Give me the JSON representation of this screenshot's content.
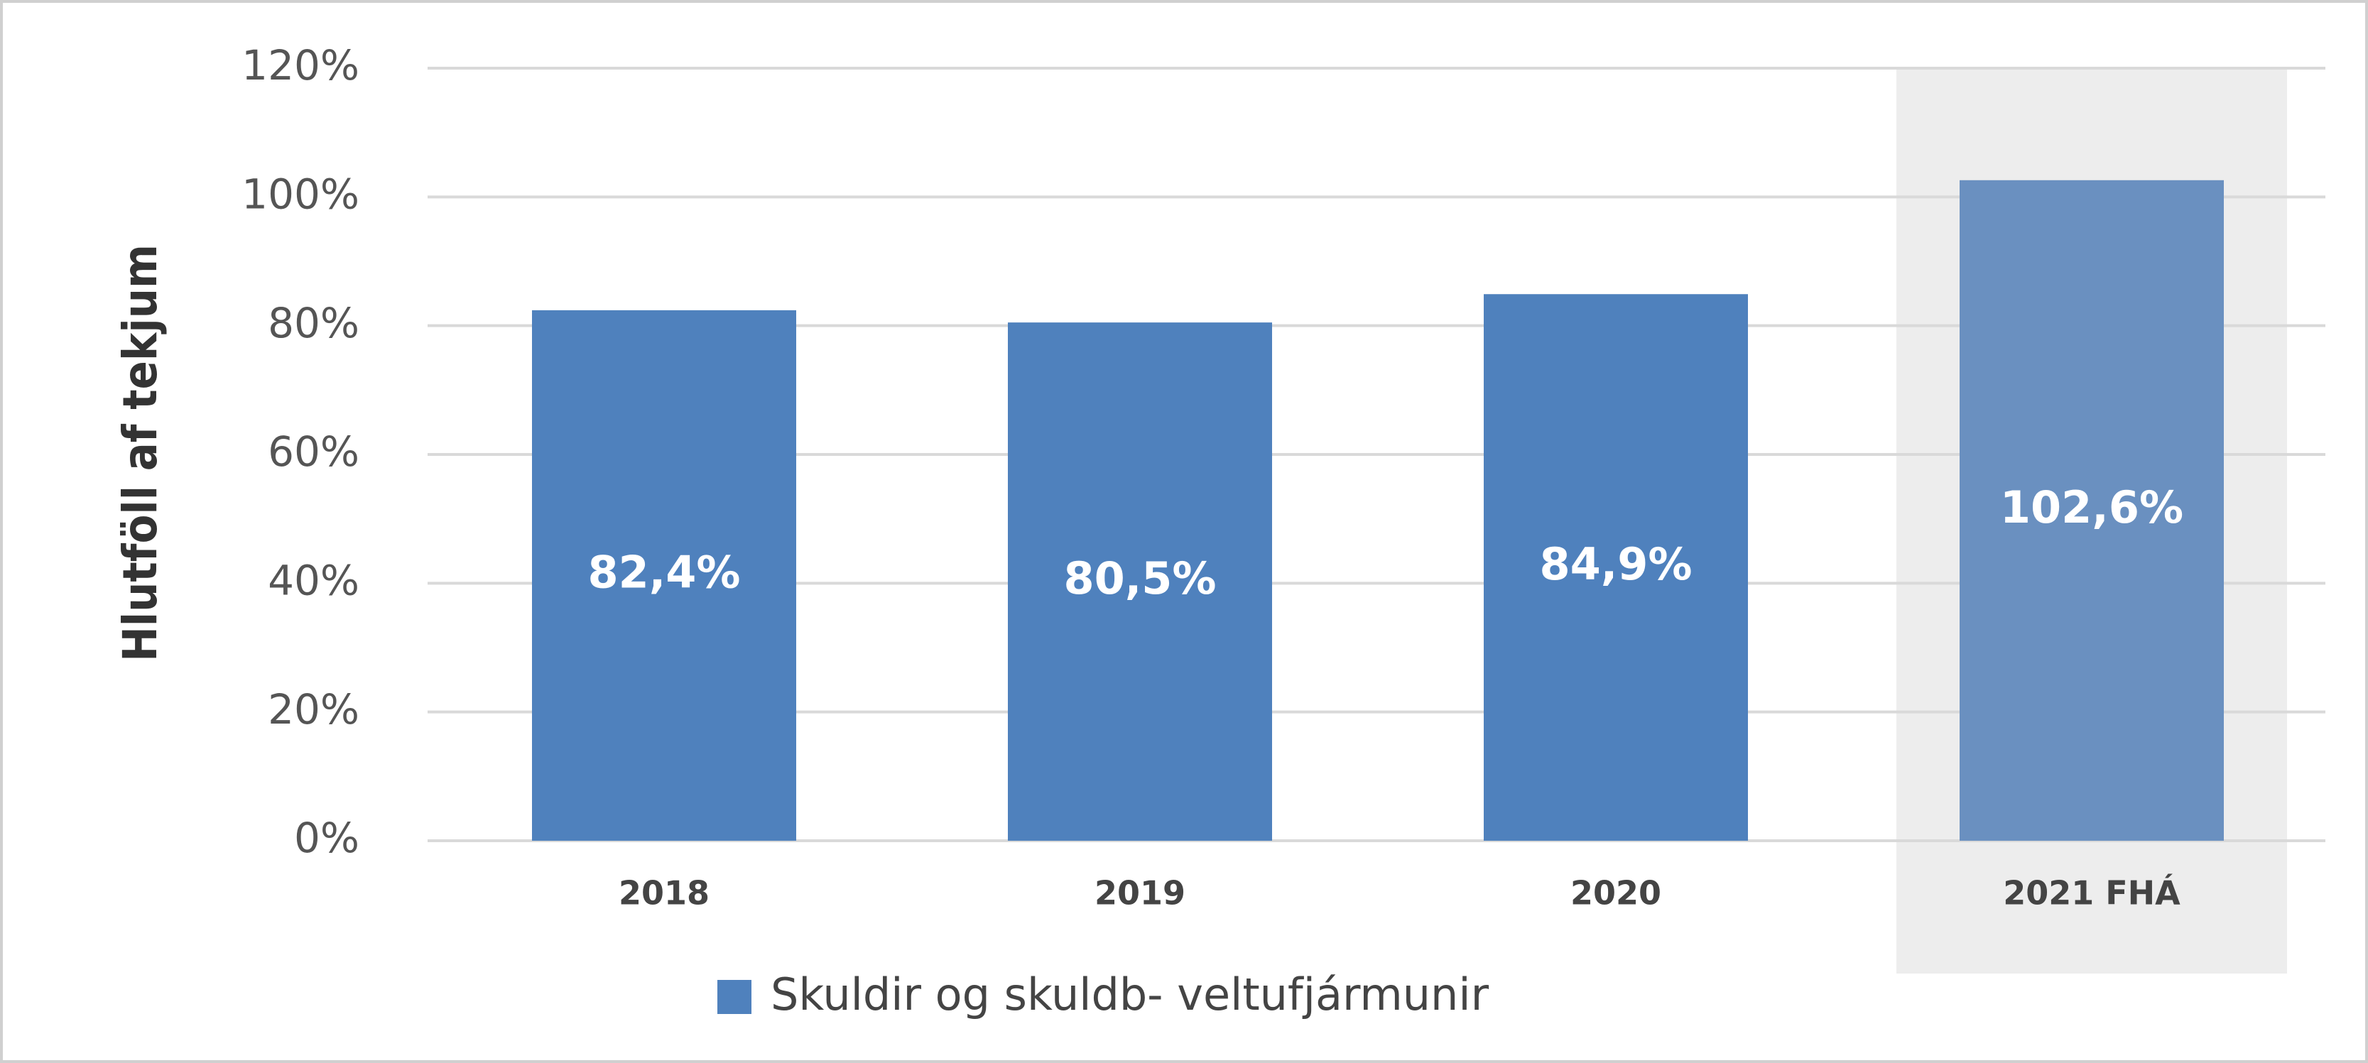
{
  "chart_data": {
    "type": "bar",
    "y_axis_label": "Hlutföll af tekjum",
    "categories": [
      "2018",
      "2019",
      "2020",
      "2021 FHÁ"
    ],
    "series": [
      {
        "name": "Skuldir og skuldb- veltufjármunir",
        "color": "#4f81bd",
        "colors": [
          "#4f81bd",
          "#4f81bd",
          "#4f81bd",
          "#6a90c0"
        ],
        "values": [
          82.4,
          80.5,
          84.9,
          102.6
        ],
        "value_labels": [
          "82,4%",
          "80,5%",
          "84,9%",
          "102,6%"
        ]
      }
    ],
    "ylim": [
      0,
      120
    ],
    "yticks": [
      {
        "value": 0,
        "label": "0%"
      },
      {
        "value": 20,
        "label": "20%"
      },
      {
        "value": 40,
        "label": "40%"
      },
      {
        "value": 60,
        "label": "60%"
      },
      {
        "value": 80,
        "label": "80%"
      },
      {
        "value": 100,
        "label": "100%"
      },
      {
        "value": 120,
        "label": "120%"
      }
    ],
    "grid": true,
    "highlight_index": 3,
    "legend": "bottom"
  }
}
